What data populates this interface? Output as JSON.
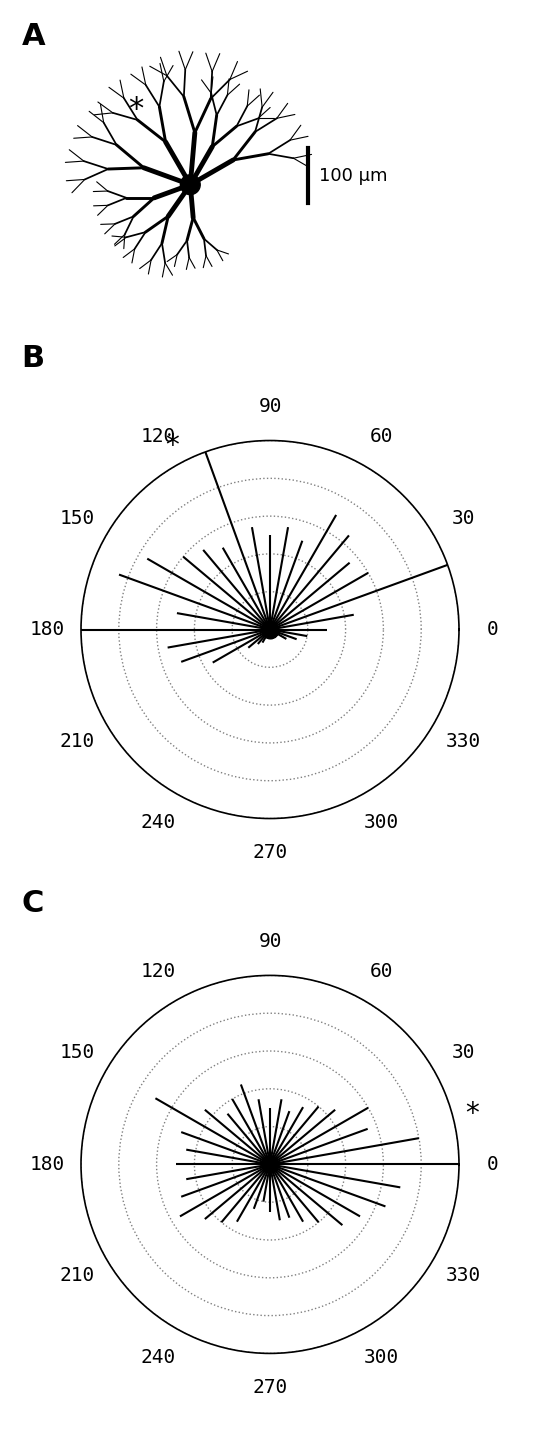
{
  "figure": {
    "panel_A": {
      "label": "A",
      "scale_bar": {
        "value": 100,
        "label": "100 µm"
      },
      "annotation": "*"
    }
  },
  "chart_data": [
    {
      "type": "polar",
      "label": "B",
      "color": "#000000",
      "grid": true,
      "tick_labels": "x",
      "x": [
        0,
        10,
        20,
        30,
        40,
        50,
        60,
        70,
        80,
        90,
        100,
        110,
        120,
        130,
        140,
        150,
        160,
        170,
        180,
        190,
        200,
        210,
        220,
        230,
        240,
        250,
        260,
        270,
        280,
        290,
        300,
        310,
        320,
        330,
        340,
        350
      ],
      "values": [
        0.3,
        0.45,
        1.0,
        0.6,
        0.55,
        0.65,
        0.7,
        0.5,
        0.55,
        0.5,
        0.55,
        1.0,
        0.5,
        0.55,
        0.6,
        0.75,
        0.85,
        0.5,
        1.0,
        0.55,
        0.5,
        0.35,
        0.15,
        0.1,
        0.08,
        0.05,
        0.05,
        0.05,
        0.05,
        0.05,
        0.05,
        0.05,
        0.05,
        0.1,
        0.15,
        0.2
      ],
      "xlim": [
        0,
        360
      ],
      "xticks": [
        0,
        30,
        60,
        90,
        120,
        150,
        180,
        210,
        240,
        270,
        300,
        330
      ],
      "ylim": [
        0,
        1
      ],
      "yticks": [
        0.2,
        0.4,
        0.6,
        0.8,
        1.0
      ],
      "annotations": [
        {
          "text": "*",
          "angle": 118
        }
      ]
    },
    {
      "type": "polar",
      "label": "C",
      "color": "#000000",
      "grid": true,
      "tick_labels": "x",
      "x": [
        0,
        10,
        20,
        30,
        40,
        50,
        60,
        70,
        80,
        90,
        100,
        110,
        120,
        130,
        140,
        150,
        160,
        170,
        180,
        190,
        200,
        210,
        220,
        230,
        240,
        250,
        260,
        270,
        280,
        290,
        300,
        310,
        320,
        330,
        340,
        350
      ],
      "values": [
        1.0,
        0.8,
        0.55,
        0.6,
        0.45,
        0.4,
        0.35,
        0.3,
        0.35,
        0.3,
        0.35,
        0.45,
        0.4,
        0.35,
        0.45,
        0.7,
        0.5,
        0.45,
        0.5,
        0.45,
        0.5,
        0.55,
        0.45,
        0.4,
        0.35,
        0.25,
        0.2,
        0.25,
        0.3,
        0.3,
        0.35,
        0.4,
        0.5,
        0.55,
        0.65,
        0.7
      ],
      "xlim": [
        0,
        360
      ],
      "xticks": [
        0,
        30,
        60,
        90,
        120,
        150,
        180,
        210,
        240,
        270,
        300,
        330
      ],
      "ylim": [
        0,
        1
      ],
      "yticks": [
        0.2,
        0.4,
        0.6,
        0.8,
        1.0
      ],
      "annotations": [
        {
          "text": "*",
          "angle": 14
        }
      ]
    }
  ]
}
